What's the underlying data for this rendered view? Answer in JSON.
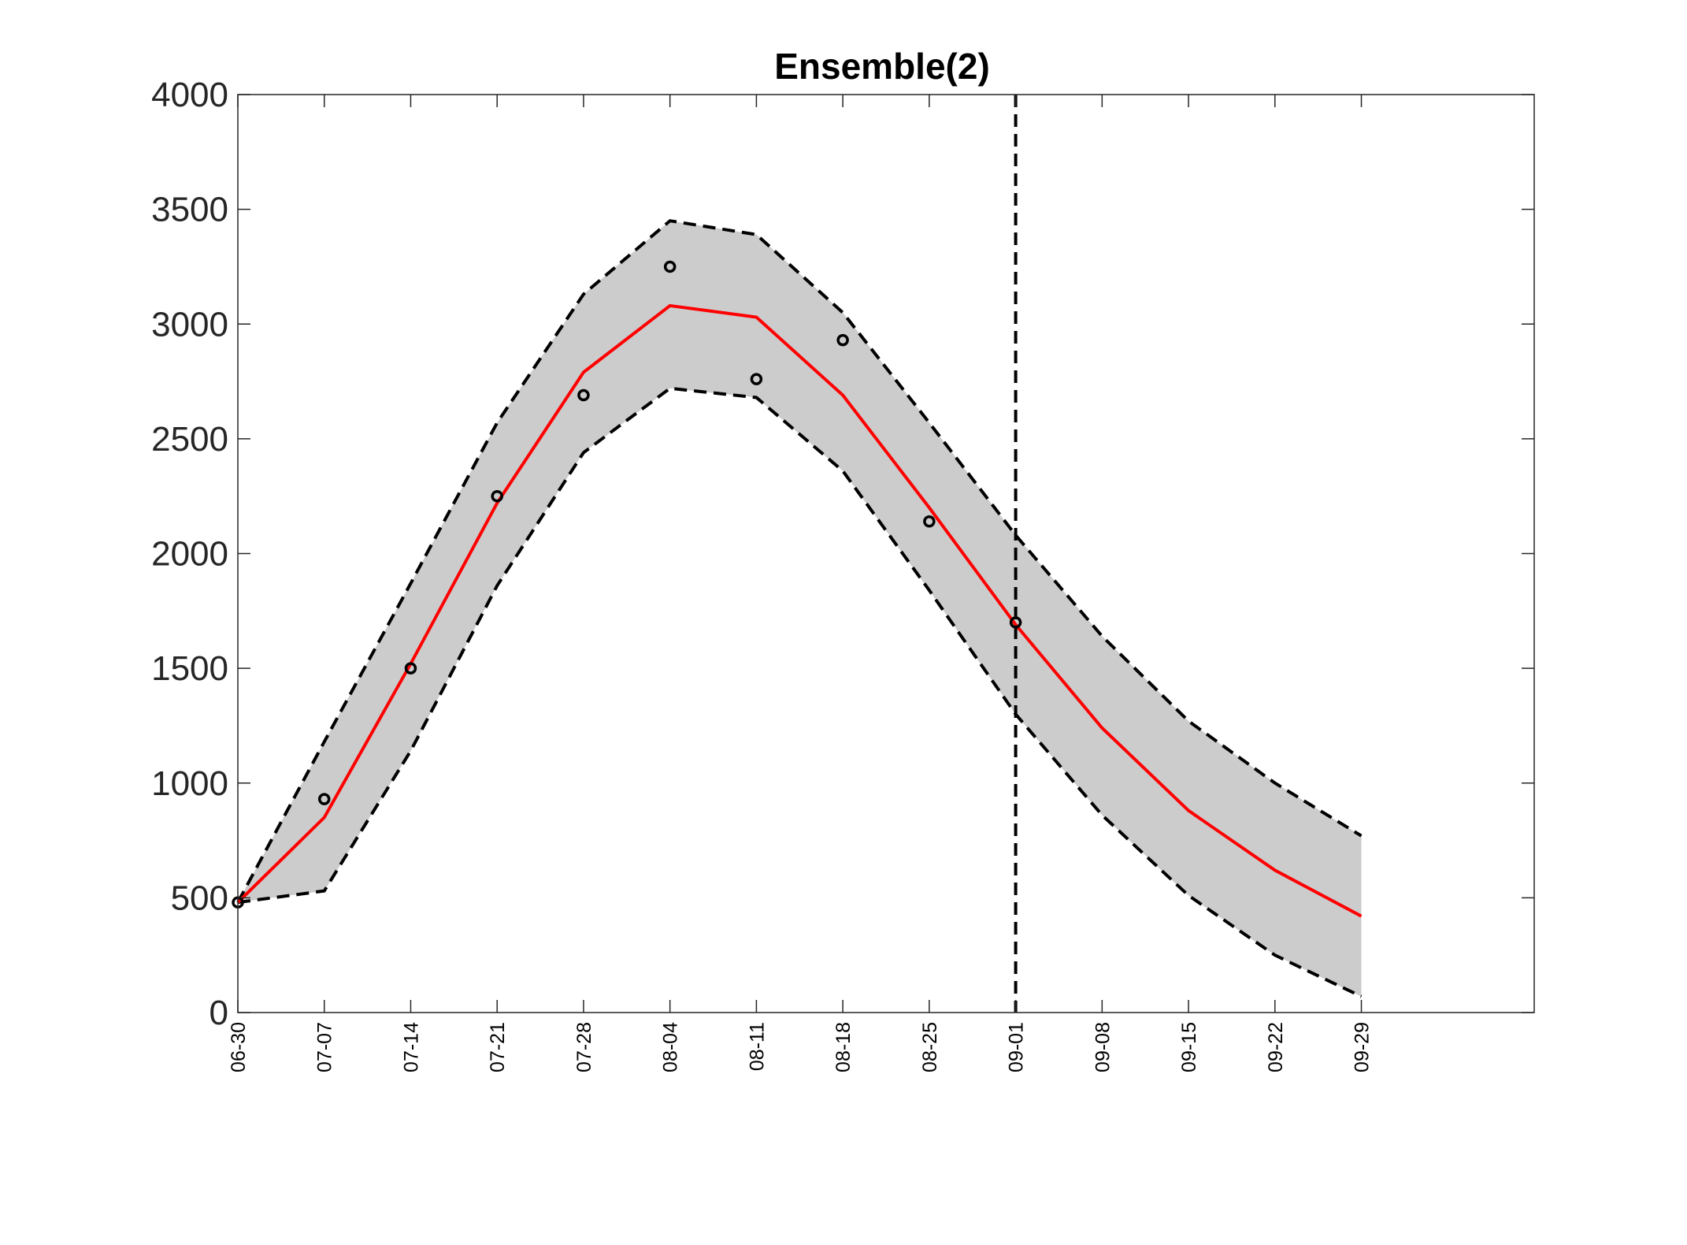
{
  "chart_data": {
    "type": "line",
    "title": "Ensemble(2)",
    "xlabel": "",
    "ylabel": "",
    "x": [
      "06-30",
      "07-07",
      "07-14",
      "07-21",
      "07-28",
      "08-04",
      "08-11",
      "08-18",
      "08-25",
      "09-01",
      "09-08",
      "09-15",
      "09-22",
      "09-29"
    ],
    "xlim": [
      "06-30",
      "10-13"
    ],
    "ylim": [
      0,
      4000
    ],
    "yticks": [
      0,
      500,
      1000,
      1500,
      2000,
      2500,
      3000,
      3500,
      4000
    ],
    "grid": false,
    "legend": "none",
    "vertical_marker": "09-01",
    "series": [
      {
        "role": "upper-bound",
        "style": "black-dashed",
        "values": [
          480,
          1180,
          1870,
          2570,
          3130,
          3450,
          3390,
          3050,
          2570,
          2080,
          1640,
          1270,
          1000,
          770
        ]
      },
      {
        "role": "mean",
        "style": "red-solid",
        "values": [
          480,
          850,
          1520,
          2220,
          2790,
          3080,
          3030,
          2690,
          2200,
          1690,
          1240,
          880,
          620,
          420
        ]
      },
      {
        "role": "lower-bound",
        "style": "black-dashed",
        "values": [
          480,
          530,
          1140,
          1860,
          2440,
          2720,
          2680,
          2360,
          1840,
          1300,
          860,
          510,
          250,
          70
        ]
      },
      {
        "role": "observed",
        "style": "black-circle",
        "x": [
          "06-30",
          "07-07",
          "07-14",
          "07-21",
          "07-28",
          "08-04",
          "08-11",
          "08-18",
          "08-25",
          "09-01"
        ],
        "values": [
          480,
          930,
          1500,
          2250,
          2690,
          3250,
          2760,
          2930,
          2140,
          1700
        ]
      }
    ],
    "colors": {
      "band": "#cccccc",
      "mean": "#ff0000",
      "bounds": "#000000",
      "markers": "#000000",
      "axes": "#262626"
    }
  }
}
